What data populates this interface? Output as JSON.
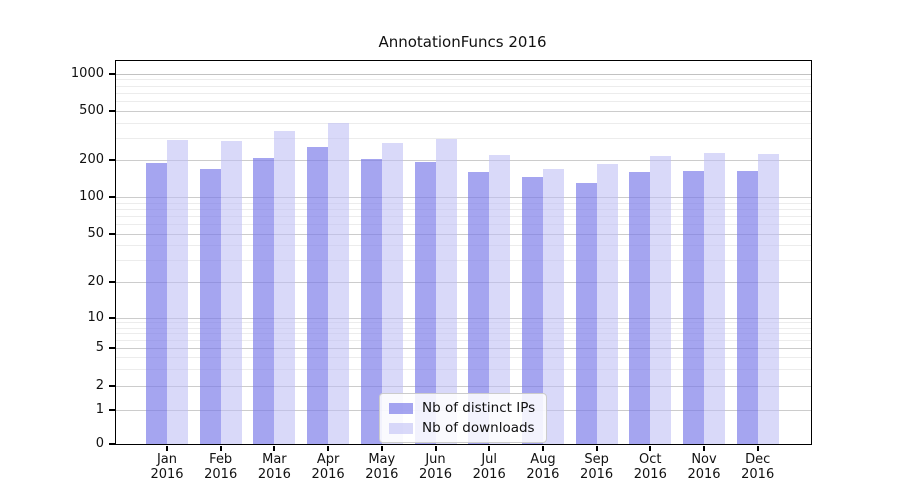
{
  "title": "AnnotationFuncs 2016",
  "colors": {
    "background": "#ffffff",
    "axis": "#000000",
    "grid_major": "#cccccc",
    "grid_minor": "#ececec",
    "bar_ips": "#a8a8f0",
    "bar_downloads": "#dcdcf6"
  },
  "legend": {
    "items": [
      {
        "label": "Nb of distinct IPs",
        "swatch_color": "rgba(118,118,232,0.66)"
      },
      {
        "label": "Nb of downloads",
        "swatch_color": "rgba(188,188,245,0.56)"
      }
    ]
  },
  "chart_data": {
    "type": "bar",
    "title": "AnnotationFuncs 2016",
    "categories": [
      "Jan 2016",
      "Feb 2016",
      "Mar 2016",
      "Apr 2016",
      "May 2016",
      "Jun 2016",
      "Jul 2016",
      "Aug 2016",
      "Sep 2016",
      "Oct 2016",
      "Nov 2016",
      "Dec 2016"
    ],
    "series": [
      {
        "name": "Nb of distinct IPs",
        "color": "rgba(118,118,232,0.66)",
        "color_hex": "#a8a8f0",
        "values": [
          190,
          170,
          210,
          255,
          205,
          195,
          160,
          145,
          130,
          160,
          165,
          165
        ]
      },
      {
        "name": "Nb of downloads",
        "color": "rgba(188,188,245,0.56)",
        "color_hex": "#dcdcf6",
        "values": [
          290,
          285,
          345,
          400,
          275,
          300,
          220,
          170,
          185,
          215,
          230,
          225
        ]
      }
    ],
    "xlabel": "",
    "ylabel": "",
    "yscale": "symlog",
    "yticks": [
      0,
      1,
      2,
      5,
      10,
      20,
      50,
      100,
      200,
      500,
      1000
    ],
    "minor_gridlines": [
      3,
      4,
      6,
      7,
      8,
      9,
      30,
      40,
      60,
      70,
      80,
      90,
      300,
      400,
      600,
      700,
      800,
      900
    ],
    "ylim": [
      0,
      1300
    ],
    "grid": true,
    "legend_position": "lower center"
  }
}
